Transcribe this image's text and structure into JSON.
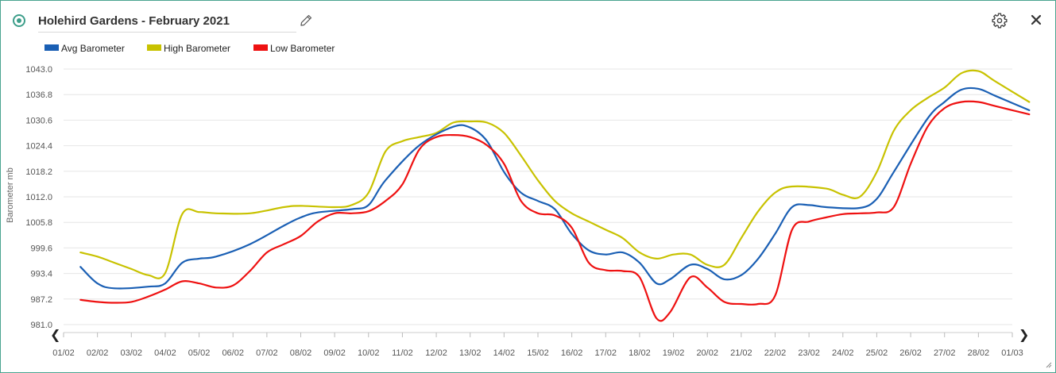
{
  "header": {
    "title": "Holehird Gardens - February 2021"
  },
  "icons": {
    "status": "status-indicator-icon",
    "edit": "pencil-icon",
    "settings": "gear-icon",
    "close": "close-icon",
    "prev": "chevron-left-icon",
    "next": "chevron-right-icon"
  },
  "chart_data": {
    "type": "line",
    "title": "",
    "xlabel": "",
    "ylabel": "Barometer mb",
    "ylim": [
      981.0,
      1043.0
    ],
    "yticks": [
      "1043.0",
      "1036.8",
      "1030.6",
      "1024.4",
      "1018.2",
      "1012.0",
      "1005.8",
      "999.6",
      "993.4",
      "987.2",
      "981.0"
    ],
    "categories": [
      "01/02",
      "02/02",
      "03/02",
      "04/02",
      "05/02",
      "06/02",
      "07/02",
      "08/02",
      "09/02",
      "10/02",
      "11/02",
      "12/02",
      "13/02",
      "14/02",
      "15/02",
      "16/02",
      "17/02",
      "18/02",
      "19/02",
      "20/02",
      "21/02",
      "22/02",
      "23/02",
      "24/02",
      "25/02",
      "26/02",
      "27/02",
      "28/02",
      "01/03"
    ],
    "grid": true,
    "legend_position": "top-left",
    "series": [
      {
        "name": "Avg Barometer",
        "color": "#1a5fb4",
        "points": [
          [
            0.5,
            995.0
          ],
          [
            1.0,
            991.0
          ],
          [
            1.5,
            989.8
          ],
          [
            2.5,
            990.2
          ],
          [
            3.0,
            991.0
          ],
          [
            3.5,
            996.0
          ],
          [
            4.0,
            997.0
          ],
          [
            4.5,
            997.5
          ],
          [
            5.5,
            1000.5
          ],
          [
            6.5,
            1005.0
          ],
          [
            7.0,
            1007.0
          ],
          [
            7.5,
            1008.2
          ],
          [
            8.5,
            1009.0
          ],
          [
            9.0,
            1010.0
          ],
          [
            9.5,
            1016.0
          ],
          [
            10.5,
            1024.5
          ],
          [
            11.5,
            1029.0
          ],
          [
            12.0,
            1028.8
          ],
          [
            12.5,
            1025.5
          ],
          [
            13.0,
            1018.0
          ],
          [
            13.5,
            1013.0
          ],
          [
            14.0,
            1011.0
          ],
          [
            14.5,
            1009.0
          ],
          [
            15.0,
            1003.0
          ],
          [
            15.5,
            999.0
          ],
          [
            16.0,
            998.0
          ],
          [
            16.5,
            998.5
          ],
          [
            17.0,
            996.0
          ],
          [
            17.5,
            991.0
          ],
          [
            17.9,
            992.0
          ],
          [
            18.5,
            995.5
          ],
          [
            19.0,
            994.5
          ],
          [
            19.5,
            992.0
          ],
          [
            20.0,
            993.0
          ],
          [
            20.5,
            997.0
          ],
          [
            21.0,
            1003.0
          ],
          [
            21.5,
            1009.5
          ],
          [
            22.0,
            1010.0
          ],
          [
            22.5,
            1009.5
          ],
          [
            23.5,
            1009.3
          ],
          [
            24.0,
            1011.5
          ],
          [
            24.5,
            1018.0
          ],
          [
            25.5,
            1031.0
          ],
          [
            26.0,
            1035.0
          ],
          [
            26.5,
            1038.0
          ],
          [
            27.0,
            1038.2
          ],
          [
            27.5,
            1036.5
          ],
          [
            28.5,
            1033.0
          ]
        ]
      },
      {
        "name": "High Barometer",
        "color": "#c8c200",
        "points": [
          [
            0.5,
            998.5
          ],
          [
            1.0,
            997.5
          ],
          [
            1.5,
            996.0
          ],
          [
            2.0,
            994.5
          ],
          [
            2.5,
            993.0
          ],
          [
            3.0,
            993.5
          ],
          [
            3.5,
            1007.8
          ],
          [
            4.0,
            1008.3
          ],
          [
            4.5,
            1008.0
          ],
          [
            5.5,
            1008.0
          ],
          [
            6.5,
            1009.5
          ],
          [
            7.0,
            1009.8
          ],
          [
            8.0,
            1009.5
          ],
          [
            8.5,
            1010.0
          ],
          [
            9.0,
            1013.0
          ],
          [
            9.5,
            1023.0
          ],
          [
            10.0,
            1025.5
          ],
          [
            10.5,
            1026.5
          ],
          [
            11.0,
            1027.5
          ],
          [
            11.5,
            1030.0
          ],
          [
            12.0,
            1030.3
          ],
          [
            12.5,
            1030.0
          ],
          [
            13.0,
            1027.5
          ],
          [
            13.5,
            1022.0
          ],
          [
            14.0,
            1016.0
          ],
          [
            14.5,
            1011.0
          ],
          [
            15.0,
            1008.0
          ],
          [
            15.5,
            1006.0
          ],
          [
            16.0,
            1004.0
          ],
          [
            16.5,
            1002.0
          ],
          [
            17.0,
            998.5
          ],
          [
            17.5,
            997.0
          ],
          [
            18.0,
            998.0
          ],
          [
            18.5,
            998.0
          ],
          [
            19.0,
            995.5
          ],
          [
            19.5,
            995.5
          ],
          [
            20.0,
            1002.0
          ],
          [
            20.5,
            1008.5
          ],
          [
            21.0,
            1013.0
          ],
          [
            21.5,
            1014.5
          ],
          [
            22.5,
            1014.0
          ],
          [
            23.0,
            1012.5
          ],
          [
            23.5,
            1012.0
          ],
          [
            24.0,
            1018.0
          ],
          [
            24.5,
            1028.0
          ],
          [
            25.0,
            1033.0
          ],
          [
            25.5,
            1036.0
          ],
          [
            26.0,
            1038.5
          ],
          [
            26.5,
            1042.0
          ],
          [
            27.0,
            1042.5
          ],
          [
            27.5,
            1040.0
          ],
          [
            28.5,
            1035.0
          ]
        ]
      },
      {
        "name": "Low Barometer",
        "color": "#ee1111",
        "points": [
          [
            0.5,
            987.0
          ],
          [
            1.0,
            986.5
          ],
          [
            1.5,
            986.3
          ],
          [
            2.0,
            986.5
          ],
          [
            2.5,
            987.8
          ],
          [
            3.0,
            989.5
          ],
          [
            3.5,
            991.5
          ],
          [
            4.0,
            991.0
          ],
          [
            4.5,
            990.0
          ],
          [
            5.0,
            990.5
          ],
          [
            5.5,
            994.0
          ],
          [
            6.0,
            998.5
          ],
          [
            6.5,
            1000.5
          ],
          [
            7.0,
            1002.5
          ],
          [
            7.5,
            1006.0
          ],
          [
            8.0,
            1008.0
          ],
          [
            8.5,
            1008.0
          ],
          [
            9.0,
            1008.5
          ],
          [
            9.5,
            1011.0
          ],
          [
            10.0,
            1015.0
          ],
          [
            10.5,
            1023.5
          ],
          [
            11.0,
            1026.5
          ],
          [
            11.5,
            1027.0
          ],
          [
            12.0,
            1026.5
          ],
          [
            12.5,
            1024.5
          ],
          [
            13.0,
            1020.0
          ],
          [
            13.5,
            1011.0
          ],
          [
            14.0,
            1008.0
          ],
          [
            14.5,
            1007.5
          ],
          [
            15.0,
            1004.5
          ],
          [
            15.5,
            996.0
          ],
          [
            16.0,
            994.2
          ],
          [
            16.5,
            994.0
          ],
          [
            17.0,
            992.5
          ],
          [
            17.5,
            982.5
          ],
          [
            17.9,
            984.0
          ],
          [
            18.5,
            992.5
          ],
          [
            19.0,
            990.0
          ],
          [
            19.5,
            986.5
          ],
          [
            20.0,
            986.0
          ],
          [
            20.5,
            986.0
          ],
          [
            21.0,
            988.0
          ],
          [
            21.5,
            1004.0
          ],
          [
            22.0,
            1006.0
          ],
          [
            22.5,
            1007.0
          ],
          [
            23.0,
            1007.8
          ],
          [
            23.5,
            1008.0
          ],
          [
            24.0,
            1008.2
          ],
          [
            24.5,
            1009.5
          ],
          [
            25.0,
            1020.0
          ],
          [
            25.5,
            1029.0
          ],
          [
            26.0,
            1033.5
          ],
          [
            26.5,
            1035.0
          ],
          [
            27.0,
            1035.0
          ],
          [
            27.5,
            1034.0
          ],
          [
            28.5,
            1032.0
          ]
        ]
      }
    ]
  }
}
